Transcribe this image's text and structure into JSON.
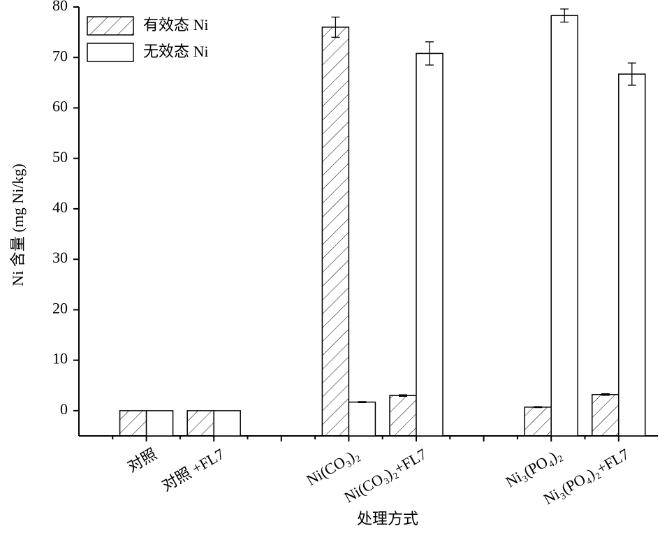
{
  "chart_data": {
    "type": "bar",
    "x_label": "处理方式",
    "y_label": "Ni 含量 (mg Ni/kg)",
    "categories": [
      "对照",
      "对照 +FL7",
      null,
      "Ni(CO₃)₂",
      "Ni(CO₃)₂+FL7",
      null,
      "Ni₃(PO₄)₂",
      "Ni₃(PO₄)₂+FL7"
    ],
    "series": [
      {
        "name": "有效态 Ni",
        "color": "#000000",
        "pattern": "hatch",
        "values": [
          0,
          0,
          null,
          76,
          3,
          null,
          0.7,
          3.2
        ],
        "errors": [
          null,
          null,
          null,
          2,
          0.15,
          null,
          0.1,
          0.15
        ]
      },
      {
        "name": "无效态 Ni",
        "color": "#000000",
        "pattern": "none",
        "values": [
          0,
          0,
          null,
          1.7,
          70.8,
          null,
          78.3,
          66.7
        ],
        "errors": [
          null,
          null,
          null,
          0.1,
          2.3,
          null,
          1.3,
          2.2
        ]
      }
    ],
    "ylim": [
      -5,
      80
    ],
    "yticks": [
      0,
      10,
      20,
      30,
      40,
      50,
      60,
      70,
      80
    ],
    "legend": "top-left",
    "grid": false
  }
}
